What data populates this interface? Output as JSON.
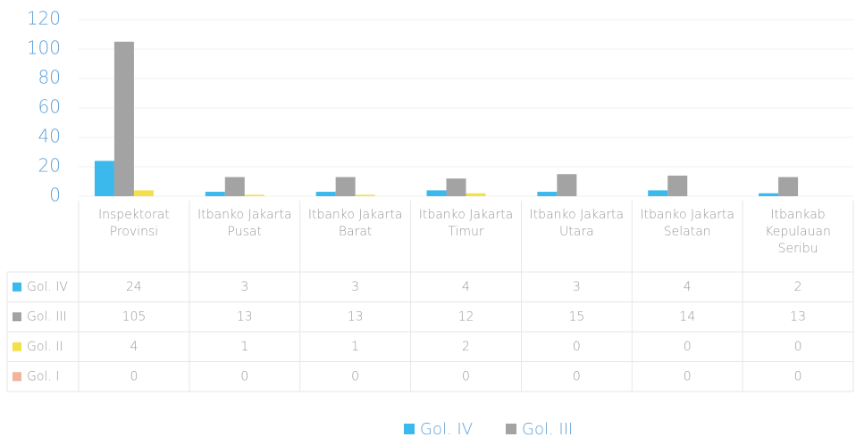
{
  "chart_data": {
    "type": "bar",
    "categories": [
      "Inspektorat Provinsi",
      "Itbanko Jakarta Pusat",
      "Itbanko Jakarta Barat",
      "Itbanko Jakarta Timur",
      "Itbanko Jakarta Utara",
      "Itbanko Jakarta Selatan",
      "Itbankab Kepulauan Seribu"
    ],
    "series": [
      {
        "name": "Gol. IV",
        "color": "#3bb9ec",
        "values": [
          24,
          3,
          3,
          4,
          3,
          4,
          2
        ]
      },
      {
        "name": "Gol. III",
        "color": "#a3a3a3",
        "values": [
          105,
          13,
          13,
          12,
          15,
          14,
          13
        ]
      },
      {
        "name": "Gol. II",
        "color": "#f4e04d",
        "values": [
          4,
          1,
          1,
          2,
          0,
          0,
          0
        ]
      },
      {
        "name": "Gol. I",
        "color": "#f2b49c",
        "values": [
          0,
          0,
          0,
          0,
          0,
          0,
          0
        ]
      }
    ],
    "legend_series": [
      0,
      1
    ],
    "ylim": [
      0,
      120
    ],
    "yticks": [
      0,
      20,
      40,
      60,
      80,
      100,
      120
    ],
    "grid": true
  }
}
